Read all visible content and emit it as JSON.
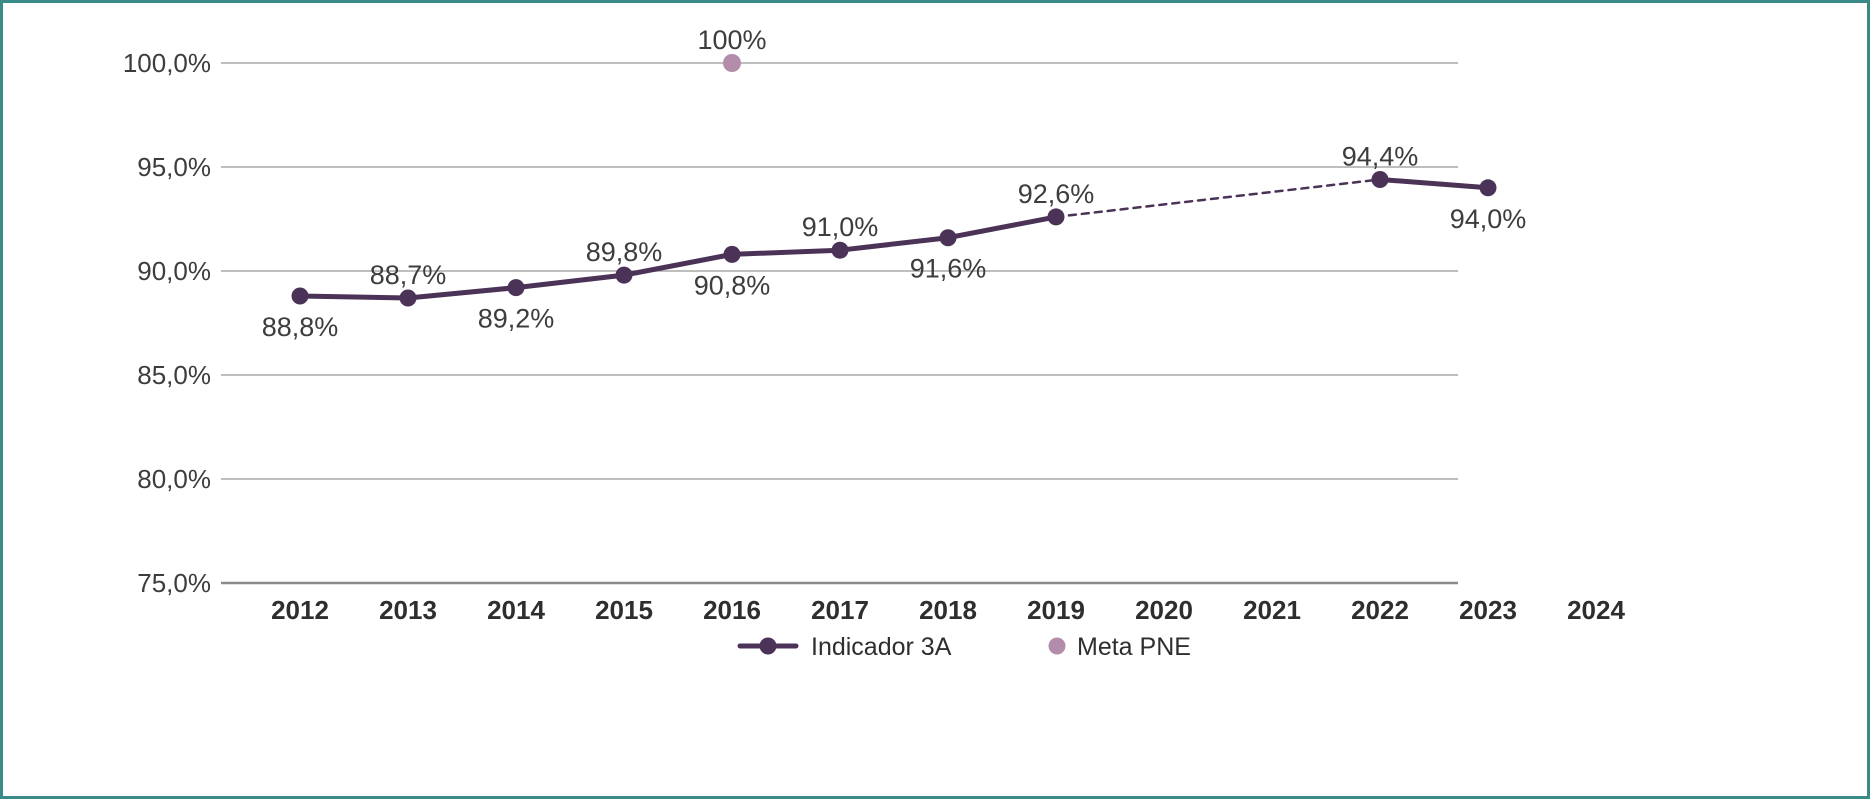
{
  "chart_data": {
    "type": "line",
    "categories": [
      "2012",
      "2013",
      "2014",
      "2015",
      "2016",
      "2017",
      "2018",
      "2019",
      "2020",
      "2021",
      "2022",
      "2023",
      "2024"
    ],
    "ylim": [
      75,
      100
    ],
    "yticks": [
      {
        "value": 100,
        "label": "100,0%"
      },
      {
        "value": 95,
        "label": "95,0%"
      },
      {
        "value": 90,
        "label": "90,0%"
      },
      {
        "value": 85,
        "label": "85,0%"
      },
      {
        "value": 80,
        "label": "80,0%"
      },
      {
        "value": 75,
        "label": "75,0%"
      }
    ],
    "grid": true,
    "legend_position": "bottom",
    "series": [
      {
        "name": "Indicador 3A",
        "color": "#4b3257",
        "line_style": "solid, dashed between 2019 and 2022",
        "points": [
          {
            "x": "2012",
            "y": 88.8,
            "label": "88,8%",
            "label_side": "below"
          },
          {
            "x": "2013",
            "y": 88.7,
            "label": "88,7%",
            "label_side": "above"
          },
          {
            "x": "2014",
            "y": 89.2,
            "label": "89,2%",
            "label_side": "below"
          },
          {
            "x": "2015",
            "y": 89.8,
            "label": "89,8%",
            "label_side": "above"
          },
          {
            "x": "2016",
            "y": 90.8,
            "label": "90,8%",
            "label_side": "below"
          },
          {
            "x": "2017",
            "y": 91.0,
            "label": "91,0%",
            "label_side": "above"
          },
          {
            "x": "2018",
            "y": 91.6,
            "label": "91,6%",
            "label_side": "below"
          },
          {
            "x": "2019",
            "y": 92.6,
            "label": "92,6%",
            "label_side": "above"
          },
          {
            "x": "2022",
            "y": 94.4,
            "label": "94,4%",
            "label_side": "above"
          },
          {
            "x": "2023",
            "y": 94.0,
            "label": "94,0%",
            "label_side": "below"
          }
        ]
      },
      {
        "name": "Meta PNE",
        "color": "#b28ca8",
        "points": [
          {
            "x": "2016",
            "y": 100,
            "label": "100%",
            "label_side": "above"
          }
        ]
      }
    ]
  }
}
